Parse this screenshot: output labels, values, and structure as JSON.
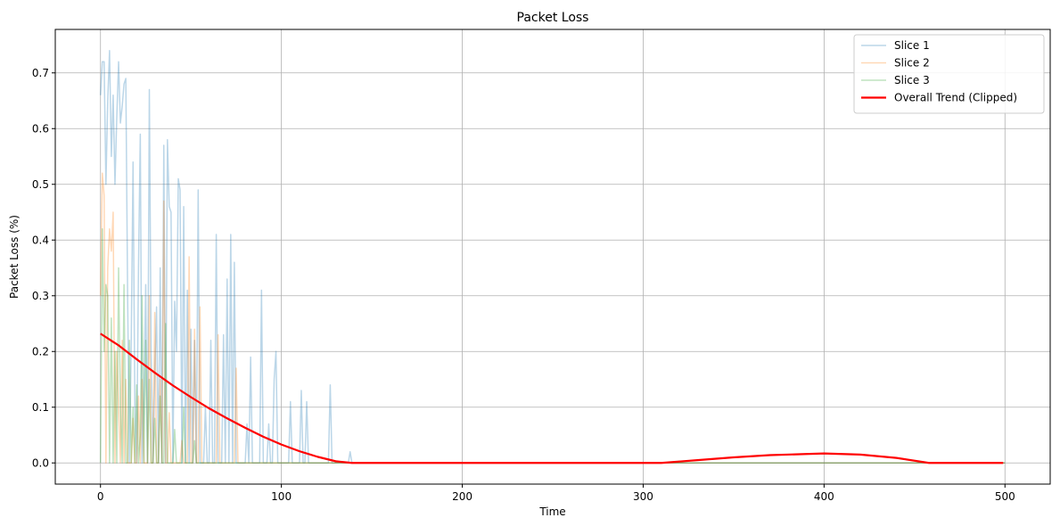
{
  "chart_data": {
    "type": "line",
    "title": "Packet Loss",
    "xlabel": "Time",
    "ylabel": "Packet Loss (%)",
    "xlim": [
      -25,
      525
    ],
    "ylim": [
      -0.038,
      0.778
    ],
    "xticks": [
      0,
      100,
      200,
      300,
      400,
      500
    ],
    "yticks": [
      0.0,
      0.1,
      0.2,
      0.3,
      0.4,
      0.5,
      0.6,
      0.7
    ],
    "ytick_labels": [
      "0.0",
      "0.1",
      "0.2",
      "0.3",
      "0.4",
      "0.5",
      "0.6",
      "0.7"
    ],
    "grid": true,
    "legend_position": "top-right",
    "series": [
      {
        "name": "Slice 1",
        "color": "#1f77b4",
        "alpha": 0.3,
        "linewidth": 1.5,
        "x": [
          0,
          1,
          2,
          3,
          4,
          5,
          6,
          7,
          8,
          9,
          10,
          11,
          12,
          13,
          14,
          15,
          16,
          17,
          18,
          19,
          20,
          21,
          22,
          23,
          24,
          25,
          26,
          27,
          28,
          29,
          30,
          31,
          32,
          33,
          34,
          35,
          36,
          37,
          38,
          39,
          40,
          41,
          42,
          43,
          44,
          45,
          46,
          47,
          48,
          49,
          50,
          51,
          52,
          53,
          54,
          55,
          56,
          57,
          58,
          59,
          60,
          61,
          62,
          63,
          64,
          65,
          66,
          67,
          68,
          69,
          70,
          71,
          72,
          73,
          74,
          75,
          76,
          77,
          78,
          79,
          80,
          81,
          82,
          83,
          84,
          85,
          86,
          87,
          88,
          89,
          90,
          91,
          92,
          93,
          94,
          95,
          96,
          97,
          98,
          99,
          100,
          101,
          102,
          103,
          104,
          105,
          106,
          107,
          108,
          109,
          110,
          111,
          112,
          113,
          114,
          115,
          116,
          117,
          118,
          119,
          120,
          121,
          122,
          123,
          124,
          125,
          126,
          127,
          128,
          129,
          130,
          131,
          132,
          133,
          134,
          135,
          136,
          137,
          138,
          139,
          140,
          500
        ],
        "values": [
          0.66,
          0.72,
          0.72,
          0.5,
          0.65,
          0.74,
          0.55,
          0.66,
          0.5,
          0.62,
          0.72,
          0.61,
          0.64,
          0.68,
          0.69,
          0.3,
          0.0,
          0.22,
          0.54,
          0.1,
          0.0,
          0.35,
          0.59,
          0.0,
          0.12,
          0.32,
          0.0,
          0.67,
          0.2,
          0.0,
          0.16,
          0.28,
          0.0,
          0.35,
          0.0,
          0.57,
          0.0,
          0.58,
          0.46,
          0.45,
          0.0,
          0.29,
          0.2,
          0.51,
          0.49,
          0.0,
          0.46,
          0.0,
          0.31,
          0.0,
          0.24,
          0.0,
          0.22,
          0.0,
          0.49,
          0.0,
          0.0,
          0.0,
          0.1,
          0.0,
          0.0,
          0.22,
          0.0,
          0.0,
          0.41,
          0.0,
          0.0,
          0.0,
          0.23,
          0.0,
          0.33,
          0.0,
          0.41,
          0.0,
          0.36,
          0.0,
          0.0,
          0.0,
          0.0,
          0.0,
          0.0,
          0.07,
          0.0,
          0.19,
          0.0,
          0.0,
          0.0,
          0.0,
          0.0,
          0.31,
          0.0,
          0.0,
          0.0,
          0.07,
          0.0,
          0.0,
          0.15,
          0.2,
          0.0,
          0.0,
          0.0,
          0.0,
          0.0,
          0.0,
          0.0,
          0.11,
          0.0,
          0.0,
          0.0,
          0.0,
          0.0,
          0.13,
          0.0,
          0.0,
          0.11,
          0.0,
          0.0,
          0.0,
          0.0,
          0.0,
          0.0,
          0.0,
          0.0,
          0.0,
          0.0,
          0.0,
          0.0,
          0.14,
          0.0,
          0.0,
          0.0,
          0.0,
          0.0,
          0.0,
          0.0,
          0.0,
          0.0,
          0.0,
          0.02,
          0.0,
          0.0,
          0.0
        ]
      },
      {
        "name": "Slice 2",
        "color": "#ff7f0e",
        "alpha": 0.3,
        "linewidth": 1.5,
        "x": [
          0,
          1,
          2,
          3,
          4,
          5,
          6,
          7,
          8,
          9,
          10,
          11,
          12,
          13,
          14,
          15,
          16,
          17,
          18,
          19,
          20,
          21,
          22,
          23,
          24,
          25,
          26,
          27,
          28,
          29,
          30,
          31,
          32,
          33,
          34,
          35,
          36,
          37,
          38,
          39,
          40,
          41,
          42,
          43,
          44,
          45,
          46,
          47,
          48,
          49,
          50,
          51,
          52,
          53,
          54,
          55,
          56,
          57,
          58,
          59,
          60,
          61,
          62,
          63,
          64,
          65,
          66,
          67,
          68,
          69,
          70,
          71,
          72,
          73,
          74,
          75,
          76,
          77,
          78,
          79,
          80,
          500
        ],
        "values": [
          0.3,
          0.52,
          0.48,
          0.0,
          0.35,
          0.42,
          0.38,
          0.45,
          0.0,
          0.2,
          0.1,
          0.0,
          0.22,
          0.0,
          0.15,
          0.0,
          0.0,
          0.0,
          0.08,
          0.0,
          0.0,
          0.12,
          0.0,
          0.15,
          0.0,
          0.0,
          0.0,
          0.3,
          0.0,
          0.0,
          0.27,
          0.0,
          0.0,
          0.15,
          0.0,
          0.47,
          0.0,
          0.0,
          0.09,
          0.0,
          0.0,
          0.0,
          0.0,
          0.0,
          0.0,
          0.04,
          0.0,
          0.0,
          0.0,
          0.37,
          0.0,
          0.0,
          0.24,
          0.0,
          0.0,
          0.28,
          0.0,
          0.0,
          0.0,
          0.0,
          0.0,
          0.0,
          0.0,
          0.0,
          0.0,
          0.23,
          0.0,
          0.0,
          0.0,
          0.0,
          0.0,
          0.0,
          0.0,
          0.0,
          0.0,
          0.17,
          0.0,
          0.0,
          0.0,
          0.0,
          0.0,
          0.0
        ]
      },
      {
        "name": "Slice 3",
        "color": "#2ca02c",
        "alpha": 0.3,
        "linewidth": 1.5,
        "x": [
          0,
          1,
          2,
          3,
          4,
          5,
          6,
          7,
          8,
          9,
          10,
          11,
          12,
          13,
          14,
          15,
          16,
          17,
          18,
          19,
          20,
          21,
          22,
          23,
          24,
          25,
          26,
          27,
          28,
          29,
          30,
          31,
          32,
          33,
          34,
          35,
          36,
          37,
          38,
          39,
          40,
          41,
          42,
          43,
          44,
          45,
          46,
          47,
          48,
          49,
          50,
          51,
          52,
          53,
          54,
          55,
          56,
          57,
          58,
          59,
          60,
          500
        ],
        "values": [
          0.0,
          0.42,
          0.2,
          0.32,
          0.3,
          0.0,
          0.26,
          0.0,
          0.2,
          0.0,
          0.35,
          0.1,
          0.0,
          0.32,
          0.0,
          0.0,
          0.22,
          0.0,
          0.1,
          0.0,
          0.14,
          0.0,
          0.05,
          0.3,
          0.0,
          0.22,
          0.0,
          0.15,
          0.0,
          0.0,
          0.08,
          0.0,
          0.0,
          0.12,
          0.0,
          0.0,
          0.25,
          0.0,
          0.0,
          0.0,
          0.0,
          0.06,
          0.0,
          0.0,
          0.0,
          0.0,
          0.1,
          0.0,
          0.0,
          0.0,
          0.0,
          0.0,
          0.04,
          0.0,
          0.0,
          0.0,
          0.0,
          0.0,
          0.0,
          0.0,
          0.0,
          0.0
        ]
      },
      {
        "name": "Overall Trend (Clipped)",
        "color": "#ff0000",
        "alpha": 1.0,
        "linewidth": 2.2,
        "x": [
          0,
          10,
          20,
          30,
          40,
          50,
          60,
          70,
          80,
          90,
          100,
          110,
          120,
          130,
          139,
          150,
          200,
          250,
          300,
          310,
          330,
          350,
          370,
          390,
          400,
          420,
          440,
          458,
          480,
          499
        ],
        "values": [
          0.232,
          0.211,
          0.186,
          0.162,
          0.139,
          0.118,
          0.098,
          0.08,
          0.063,
          0.047,
          0.033,
          0.021,
          0.011,
          0.003,
          0.0,
          0.0,
          0.0,
          0.0,
          0.0,
          0.0,
          0.005,
          0.01,
          0.014,
          0.016,
          0.017,
          0.015,
          0.009,
          0.0,
          0.0,
          0.0
        ]
      }
    ]
  }
}
